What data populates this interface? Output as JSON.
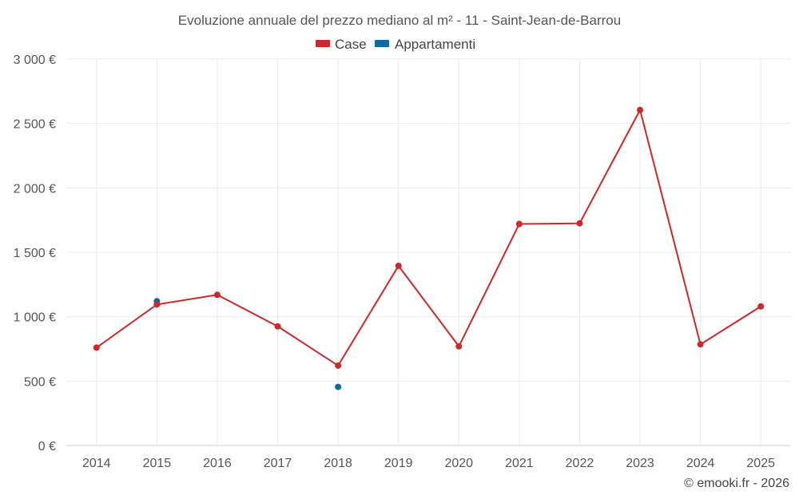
{
  "chart_data": {
    "type": "line",
    "title": "Evoluzione annuale del prezzo mediano al m² - 11 - Saint-Jean-de-Barrou",
    "categories": [
      "2014",
      "2015",
      "2016",
      "2017",
      "2018",
      "2019",
      "2020",
      "2021",
      "2022",
      "2023",
      "2024",
      "2025"
    ],
    "ylim": [
      0,
      3000
    ],
    "yticks": [
      0,
      500,
      1000,
      1500,
      2000,
      2500,
      3000
    ],
    "ytick_labels": [
      "0 €",
      "500 €",
      "1 000 €",
      "1 500 €",
      "2 000 €",
      "2 500 €",
      "3 000 €"
    ],
    "grid": true,
    "legend_position": "top-center",
    "series": [
      {
        "name": "Case",
        "color": "#d0272a",
        "mode": "line+markers",
        "values": [
          760,
          1095,
          1170,
          925,
          620,
          1395,
          770,
          1720,
          1725,
          2605,
          785,
          1080
        ]
      },
      {
        "name": "Appartamenti",
        "color": "#0a6aa1",
        "mode": "markers",
        "values": [
          null,
          1120,
          null,
          null,
          455,
          null,
          null,
          null,
          null,
          null,
          null,
          null
        ]
      }
    ]
  },
  "credit": "© emooki.fr - 2026"
}
